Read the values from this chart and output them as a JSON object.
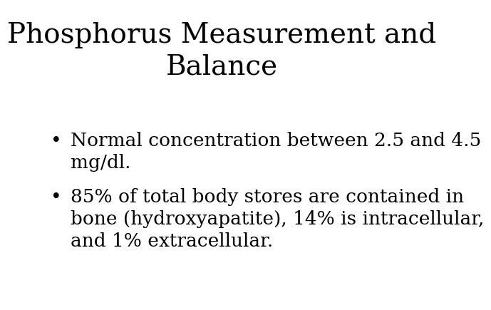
{
  "title_line1": "Phosphorus Measurement and",
  "title_line2": "Balance",
  "bullet1_line1": "Normal concentration between 2.5 and 4.5",
  "bullet1_line2": "mg/dl.",
  "bullet2_line1": "85% of total body stores are contained in",
  "bullet2_line2": "bone (hydroxyapatite), 14% is intracellular,",
  "bullet2_line3": "and 1% extracellular.",
  "background_color": "#ffffff",
  "text_color": "#000000",
  "title_fontsize": 28,
  "body_fontsize": 19,
  "bullet_char": "•"
}
